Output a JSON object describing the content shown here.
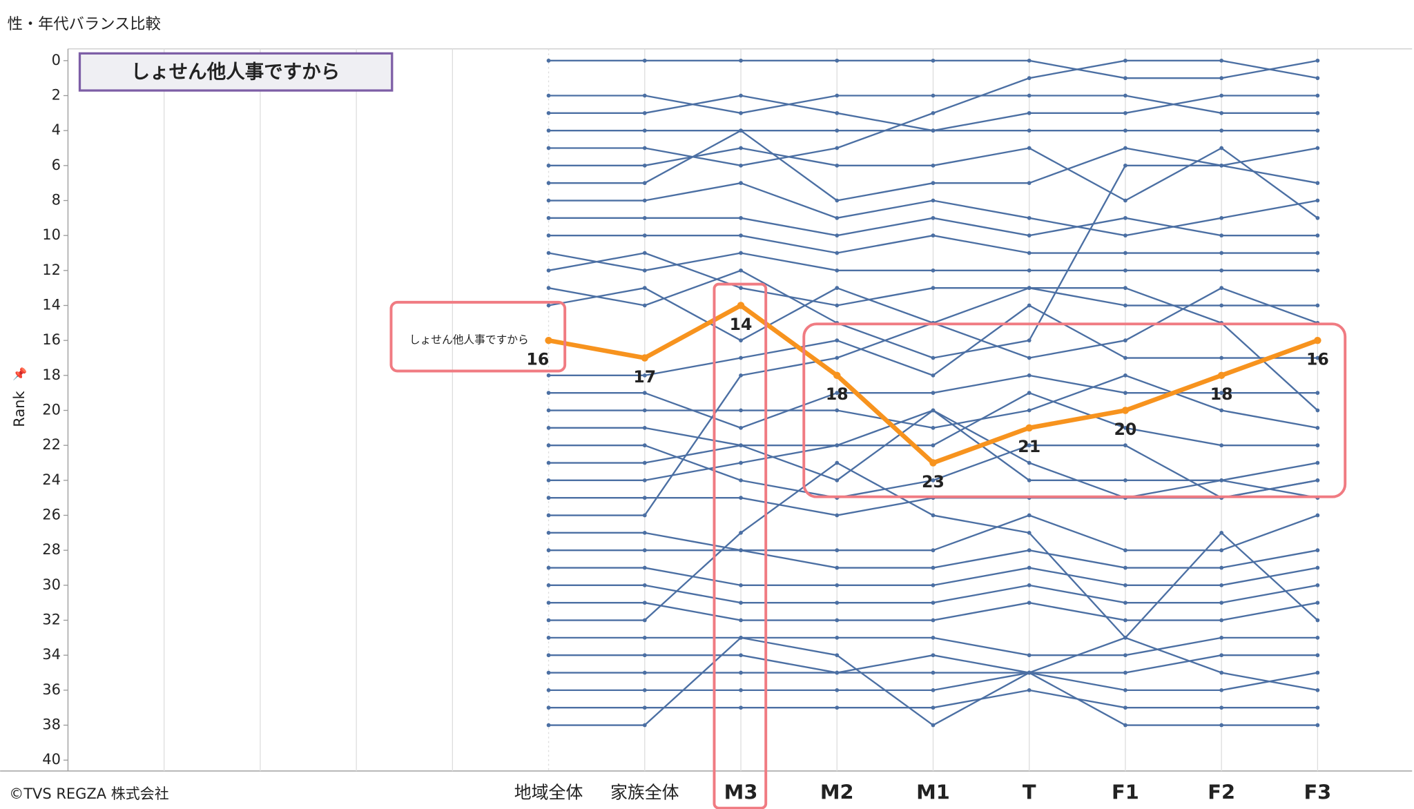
{
  "page_title": "性・年代バランス比較",
  "footer": "©TVS REGZA 株式会社",
  "chart_data": {
    "type": "bump",
    "title": "しょせん他人事ですから",
    "ylabel": "Rank",
    "categories": [
      "地域全体",
      "家族全体",
      "M3",
      "M2",
      "M1",
      "T",
      "F1",
      "F2",
      "F3"
    ],
    "ylim": [
      0,
      40
    ],
    "y_reversed": true,
    "yticks": [
      0,
      2,
      4,
      6,
      8,
      10,
      12,
      14,
      16,
      18,
      20,
      22,
      24,
      26,
      28,
      30,
      32,
      34,
      36,
      38,
      40
    ],
    "highlight": {
      "name": "しょせん他人事ですから",
      "color": "#f7931e",
      "values": [
        16,
        17,
        14,
        18,
        23,
        21,
        20,
        18,
        16
      ]
    },
    "background_color": "#4b6fa3",
    "series": [
      {
        "values": [
          0,
          0,
          0,
          0,
          0,
          0,
          1,
          1,
          0
        ]
      },
      {
        "values": [
          2,
          2,
          3,
          2,
          2,
          2,
          2,
          3,
          3
        ]
      },
      {
        "values": [
          3,
          3,
          2,
          3,
          4,
          3,
          3,
          2,
          2
        ]
      },
      {
        "values": [
          4,
          4,
          4,
          4,
          4,
          4,
          4,
          4,
          4
        ]
      },
      {
        "values": [
          5,
          5,
          6,
          5,
          3,
          1,
          0,
          0,
          1
        ]
      },
      {
        "values": [
          6,
          6,
          5,
          6,
          6,
          5,
          8,
          5,
          9
        ]
      },
      {
        "values": [
          7,
          7,
          4,
          8,
          7,
          7,
          5,
          6,
          5
        ]
      },
      {
        "values": [
          8,
          8,
          7,
          9,
          8,
          9,
          10,
          9,
          8
        ]
      },
      {
        "values": [
          9,
          9,
          9,
          10,
          9,
          10,
          9,
          10,
          10
        ]
      },
      {
        "values": [
          10,
          10,
          10,
          11,
          10,
          11,
          11,
          11,
          11
        ]
      },
      {
        "values": [
          11,
          12,
          11,
          12,
          12,
          12,
          12,
          12,
          12
        ]
      },
      {
        "values": [
          12,
          11,
          13,
          14,
          13,
          13,
          14,
          14,
          14
        ]
      },
      {
        "values": [
          13,
          14,
          12,
          15,
          17,
          16,
          6,
          6,
          7
        ]
      },
      {
        "values": [
          14,
          13,
          16,
          13,
          15,
          17,
          16,
          13,
          15
        ]
      },
      {
        "values": [
          18,
          18,
          17,
          16,
          18,
          14,
          17,
          17,
          17
        ]
      },
      {
        "values": [
          19,
          19,
          21,
          19,
          19,
          18,
          19,
          19,
          19
        ]
      },
      {
        "values": [
          20,
          20,
          20,
          20,
          21,
          20,
          18,
          20,
          21
        ]
      },
      {
        "values": [
          21,
          21,
          22,
          22,
          22,
          19,
          21,
          22,
          22
        ]
      },
      {
        "values": [
          22,
          22,
          24,
          25,
          24,
          22,
          22,
          25,
          24
        ]
      },
      {
        "values": [
          23,
          23,
          22,
          24,
          20,
          24,
          24,
          24,
          23
        ]
      },
      {
        "values": [
          24,
          24,
          23,
          22,
          20,
          23,
          25,
          24,
          25
        ]
      },
      {
        "values": [
          25,
          25,
          25,
          26,
          25,
          25,
          25,
          25,
          24
        ]
      },
      {
        "values": [
          26,
          26,
          18,
          17,
          15,
          13,
          13,
          15,
          20
        ]
      },
      {
        "values": [
          27,
          27,
          28,
          28,
          28,
          26,
          28,
          28,
          26
        ]
      },
      {
        "values": [
          28,
          28,
          28,
          29,
          29,
          28,
          29,
          29,
          28
        ]
      },
      {
        "values": [
          29,
          29,
          30,
          30,
          30,
          29,
          30,
          30,
          29
        ]
      },
      {
        "values": [
          30,
          30,
          31,
          31,
          31,
          30,
          31,
          31,
          30
        ]
      },
      {
        "values": [
          31,
          31,
          32,
          32,
          32,
          31,
          32,
          32,
          31
        ]
      },
      {
        "values": [
          32,
          32,
          27,
          23,
          26,
          27,
          33,
          27,
          32
        ]
      },
      {
        "values": [
          33,
          33,
          33,
          33,
          33,
          34,
          34,
          33,
          33
        ]
      },
      {
        "values": [
          34,
          34,
          34,
          35,
          34,
          35,
          35,
          34,
          34
        ]
      },
      {
        "values": [
          35,
          35,
          35,
          35,
          35,
          35,
          33,
          35,
          36
        ]
      },
      {
        "values": [
          36,
          36,
          36,
          36,
          36,
          35,
          36,
          36,
          35
        ]
      },
      {
        "values": [
          37,
          37,
          37,
          37,
          37,
          36,
          37,
          37,
          37
        ]
      },
      {
        "values": [
          38,
          38,
          33,
          34,
          38,
          35,
          38,
          38,
          38
        ]
      }
    ]
  }
}
